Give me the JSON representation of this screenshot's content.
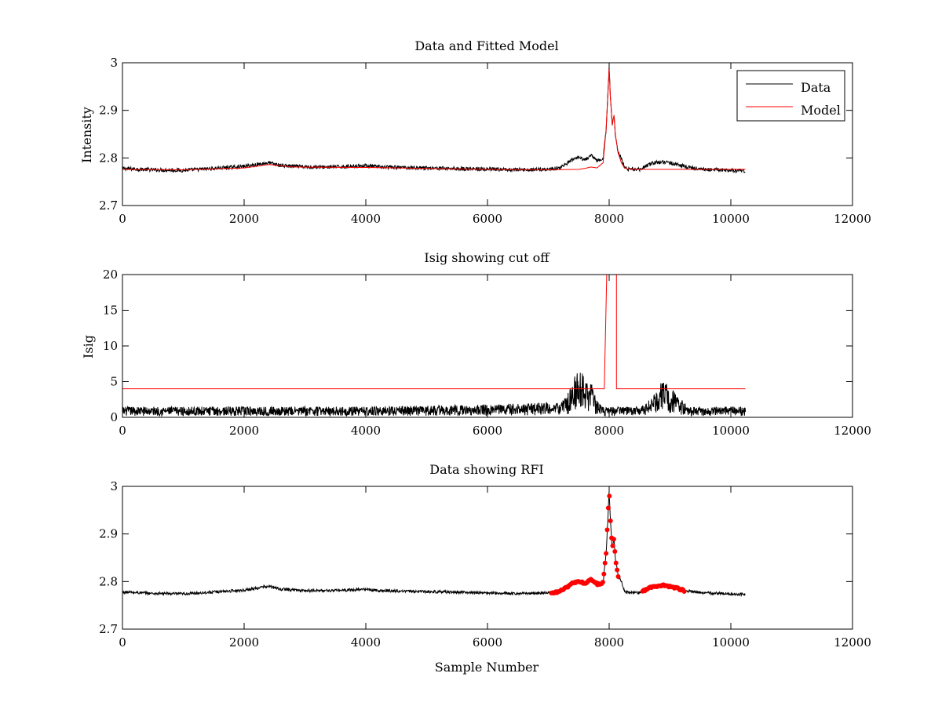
{
  "chart_data": [
    {
      "type": "line",
      "title": "Data and Fitted Model",
      "xlabel": "",
      "ylabel": "Intensity",
      "xlim": [
        0,
        12000
      ],
      "ylim": [
        2.7,
        3.0
      ],
      "xticks": [
        0,
        2000,
        4000,
        6000,
        8000,
        10000,
        12000
      ],
      "yticks": [
        2.7,
        2.8,
        2.9,
        3.0
      ],
      "ytick_labels": [
        "2.7",
        "2.8",
        "2.9",
        "3"
      ],
      "legend": {
        "placement": "top-right",
        "entries": [
          "Data",
          "Model"
        ]
      },
      "series": [
        {
          "name": "Data",
          "color": "#000000",
          "noise": 0.004,
          "x": [
            0,
            500,
            1000,
            1500,
            2000,
            2300,
            2400,
            2600,
            3000,
            3500,
            4000,
            4200,
            5000,
            6000,
            6500,
            7000,
            7200,
            7400,
            7500,
            7600,
            7700,
            7800,
            7900,
            7950,
            8000,
            8020,
            8050,
            8080,
            8100,
            8150,
            8200,
            8250,
            8300,
            8500,
            8700,
            8900,
            9100,
            9300,
            9600,
            10000,
            10240
          ],
          "y": [
            2.778,
            2.775,
            2.774,
            2.778,
            2.782,
            2.788,
            2.79,
            2.784,
            2.781,
            2.781,
            2.784,
            2.781,
            2.779,
            2.776,
            2.775,
            2.776,
            2.78,
            2.796,
            2.8,
            2.796,
            2.805,
            2.795,
            2.797,
            2.86,
            2.99,
            2.93,
            2.87,
            2.89,
            2.85,
            2.81,
            2.8,
            2.78,
            2.777,
            2.776,
            2.789,
            2.792,
            2.787,
            2.78,
            2.776,
            2.774,
            2.773
          ]
        },
        {
          "name": "Model",
          "color": "#ff0000",
          "x": [
            0,
            1000,
            2000,
            2400,
            2800,
            4000,
            5000,
            6000,
            7000,
            7500,
            7600,
            7700,
            7800,
            7900,
            7950,
            8000,
            8020,
            8050,
            8080,
            8100,
            8150,
            8200,
            8250,
            8300,
            8500,
            9000,
            9500,
            10000,
            10240
          ],
          "y": [
            2.776,
            2.775,
            2.779,
            2.786,
            2.781,
            2.78,
            2.778,
            2.776,
            2.775,
            2.776,
            2.778,
            2.781,
            2.779,
            2.79,
            2.86,
            2.99,
            2.93,
            2.87,
            2.89,
            2.85,
            2.81,
            2.79,
            2.779,
            2.777,
            2.776,
            2.776,
            2.776,
            2.776,
            2.776
          ]
        }
      ]
    },
    {
      "type": "line",
      "title": "Isig showing cut off",
      "xlabel": "",
      "ylabel": "Isig",
      "xlim": [
        0,
        12000
      ],
      "ylim": [
        0,
        20
      ],
      "xticks": [
        0,
        2000,
        4000,
        6000,
        8000,
        10000,
        12000
      ],
      "yticks": [
        0,
        5,
        10,
        15,
        20
      ],
      "ytick_labels": [
        "0",
        "5",
        "10",
        "15",
        "20"
      ],
      "series": [
        {
          "color": "#000000",
          "style": "noise-band",
          "x": [
            0,
            2000,
            4000,
            6000,
            7000,
            7200,
            7300,
            7450,
            7550,
            7700,
            7800,
            7900,
            8100,
            8500,
            8700,
            8850,
            8950,
            9100,
            9300,
            10000,
            10240
          ],
          "y": [
            1.0,
            1.0,
            1.0,
            1.2,
            1.4,
            1.3,
            2.0,
            4.2,
            4.5,
            3.5,
            1.6,
            1.0,
            1.0,
            1.0,
            1.8,
            3.2,
            3.3,
            2.2,
            1.0,
            1.0,
            1.0
          ]
        },
        {
          "color": "#ff0000",
          "x": [
            0,
            7920,
            7920,
            7960,
            7960,
            8120,
            8120,
            10240
          ],
          "y": [
            4,
            4,
            4,
            20,
            20,
            20,
            4,
            4
          ]
        }
      ]
    },
    {
      "type": "line",
      "title": "Data showing RFI",
      "xlabel": "Sample Number",
      "ylabel": "",
      "xlim": [
        0,
        12000
      ],
      "ylim": [
        2.7,
        3.0
      ],
      "xticks": [
        0,
        2000,
        4000,
        6000,
        8000,
        10000,
        12000
      ],
      "yticks": [
        2.7,
        2.8,
        2.9,
        3.0
      ],
      "ytick_labels": [
        "2.7",
        "2.8",
        "2.9",
        "3"
      ],
      "series": [
        {
          "color": "#000000",
          "noise": 0.003,
          "x": [
            0,
            500,
            1000,
            1500,
            2000,
            2300,
            2400,
            2600,
            3000,
            3500,
            4000,
            4200,
            5000,
            6000,
            6500,
            7000,
            7200,
            7400,
            7500,
            7600,
            7700,
            7800,
            7900,
            7950,
            8000,
            8020,
            8050,
            8080,
            8100,
            8150,
            8200,
            8250,
            8300,
            8500,
            8700,
            8900,
            9100,
            9300,
            9600,
            10000,
            10240
          ],
          "y": [
            2.778,
            2.775,
            2.774,
            2.778,
            2.782,
            2.788,
            2.79,
            2.784,
            2.781,
            2.781,
            2.784,
            2.781,
            2.779,
            2.776,
            2.775,
            2.776,
            2.78,
            2.796,
            2.8,
            2.796,
            2.805,
            2.795,
            2.797,
            2.86,
            2.99,
            2.93,
            2.87,
            2.89,
            2.85,
            2.81,
            2.8,
            2.78,
            2.777,
            2.776,
            2.789,
            2.792,
            2.787,
            2.78,
            2.776,
            2.774,
            2.773
          ]
        },
        {
          "color": "#ff0000",
          "style": "markers",
          "segments": [
            {
              "x": [
                7050,
                7200,
                7400,
                7500,
                7600,
                7700,
                7800,
                7900,
                7950,
                8000,
                8020,
                8050,
                8080,
                8100,
                8150
              ],
              "y": [
                2.775,
                2.78,
                2.796,
                2.8,
                2.796,
                2.805,
                2.795,
                2.797,
                2.86,
                2.99,
                2.93,
                2.87,
                2.89,
                2.85,
                2.81
              ]
            },
            {
              "x": [
                8550,
                8700,
                8900,
                9100,
                9250
              ],
              "y": [
                2.779,
                2.789,
                2.792,
                2.787,
                2.78
              ]
            }
          ]
        }
      ]
    }
  ]
}
